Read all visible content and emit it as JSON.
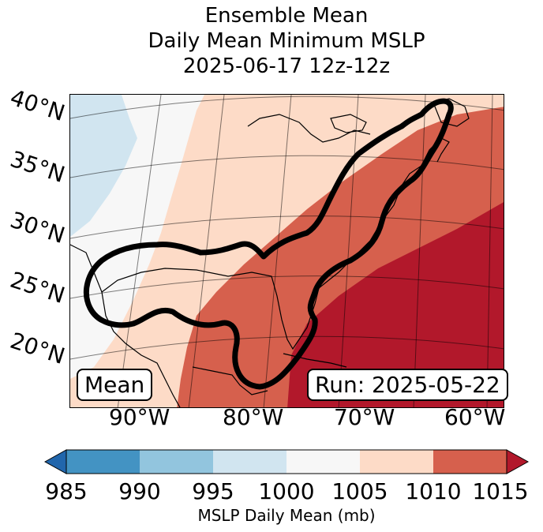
{
  "title": {
    "line1": "Ensemble Mean",
    "line2": "Daily Mean Minimum MSLP",
    "line3": "2025-06-17 12z-12z"
  },
  "map": {
    "latitude_labels": [
      "40°N",
      "35°N",
      "30°N",
      "25°N",
      "20°N"
    ],
    "longitude_labels": [
      "90°W",
      "80°W",
      "70°W",
      "60°W"
    ],
    "box_left": "Mean",
    "box_right": "Run: 2025-05-22",
    "colors": {
      "below_985": "#2166ac",
      "985_990": "#4393c3",
      "990_995": "#92c5de",
      "995_1000": "#d1e5f0",
      "1000_1005": "#f7f7f7",
      "1005_1010": "#fddbc7",
      "1010_1015": "#d6604d",
      "above_1015": "#b2182b"
    }
  },
  "colorbar": {
    "ticks": [
      "985",
      "990",
      "995",
      "1000",
      "1005",
      "1010",
      "1015"
    ],
    "label": "MSLP Daily Mean (mb)"
  }
}
